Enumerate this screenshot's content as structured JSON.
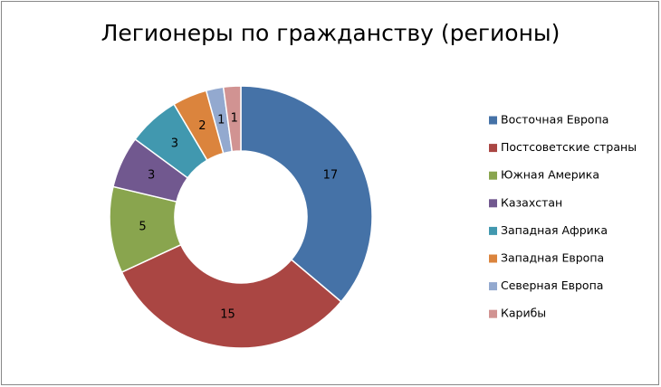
{
  "chart_data": {
    "type": "doughnut",
    "title": "Легионеры по гражданству (регионы)",
    "categories": [
      "Восточная Европа",
      "Постсоветские страны",
      "Южная Америка",
      "Казахстан",
      "Западная Африка",
      "Западная Европа",
      "Северная Европа",
      "Карибы"
    ],
    "values": [
      17,
      15,
      5,
      3,
      3,
      2,
      1,
      1
    ],
    "colors": [
      "#4572a7",
      "#aa4643",
      "#89a54e",
      "#71588f",
      "#4198af",
      "#db843d",
      "#93a9cf",
      "#d19392"
    ],
    "legend": "right"
  }
}
